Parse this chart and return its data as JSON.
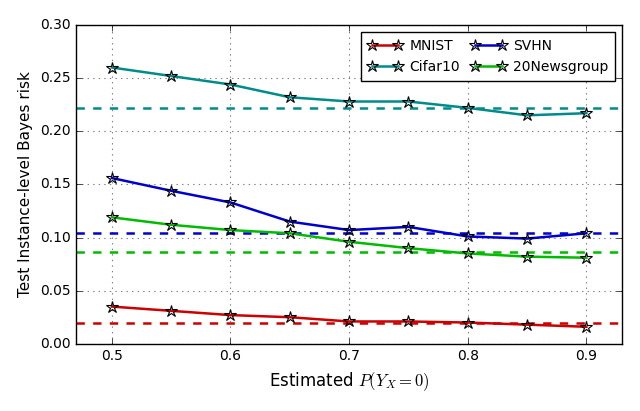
{
  "x": [
    0.5,
    0.55,
    0.6,
    0.65,
    0.7,
    0.75,
    0.8,
    0.85,
    0.9
  ],
  "mnist_solid": [
    0.035,
    0.031,
    0.027,
    0.025,
    0.021,
    0.021,
    0.02,
    0.018,
    0.016
  ],
  "mnist_dashed": 0.02,
  "svhn_solid": [
    0.156,
    0.144,
    0.133,
    0.115,
    0.107,
    0.11,
    0.101,
    0.099,
    0.104
  ],
  "svhn_dashed": 0.104,
  "cifar10_solid": [
    0.26,
    0.252,
    0.244,
    0.232,
    0.228,
    0.228,
    0.222,
    0.215,
    0.217
  ],
  "cifar10_dashed": 0.222,
  "newsgroup_solid": [
    0.119,
    0.112,
    0.107,
    0.104,
    0.096,
    0.09,
    0.085,
    0.082,
    0.081
  ],
  "newsgroup_dashed": 0.086,
  "mnist_color": "#cc0000",
  "svhn_color": "#0000cc",
  "cifar10_color": "#008B8B",
  "newsgroup_color": "#00bb00",
  "xlabel": "Estimated $P(Y_X=0)$",
  "ylabel": "Test Instance-level Bayes risk",
  "ylim": [
    0.0,
    0.3
  ],
  "xlim": [
    0.47,
    0.93
  ],
  "yticks": [
    0.0,
    0.05,
    0.1,
    0.15,
    0.2,
    0.25,
    0.3
  ],
  "xticks": [
    0.5,
    0.6,
    0.7,
    0.8,
    0.9
  ],
  "marker": "*",
  "markersize": 9,
  "linewidth": 1.8
}
